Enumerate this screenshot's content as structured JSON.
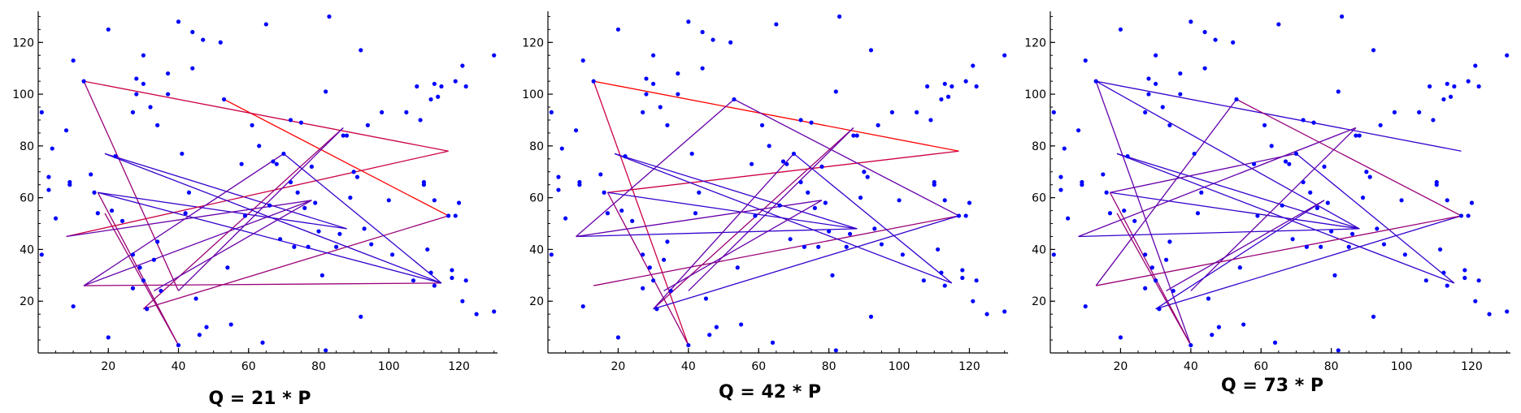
{
  "chart_data": [
    {
      "type": "scatter",
      "title": "Q = 21 * P",
      "xlim": [
        0,
        131
      ],
      "ylim": [
        0,
        132
      ],
      "xticks": [
        20,
        40,
        60,
        80,
        100,
        120
      ],
      "yticks": [
        20,
        40,
        60,
        80,
        100,
        120
      ],
      "grid": false,
      "point_color": "#0000ff",
      "segment_colors": [
        "#ff0000",
        "#cc0044",
        "#990077",
        "#6600aa",
        "#3300cc"
      ]
    },
    {
      "type": "scatter",
      "title": "Q = 42 * P",
      "xlim": [
        0,
        131
      ],
      "ylim": [
        0,
        132
      ],
      "xticks": [
        20,
        40,
        60,
        80,
        100,
        120
      ],
      "yticks": [
        20,
        40,
        60,
        80,
        100,
        120
      ],
      "grid": false,
      "point_color": "#0000ff",
      "segment_colors": [
        "#ff0000",
        "#cc0044",
        "#990077",
        "#6600aa",
        "#3300cc"
      ]
    },
    {
      "type": "scatter",
      "title": "Q = 73 * P",
      "xlim": [
        0,
        131
      ],
      "ylim": [
        0,
        132
      ],
      "xticks": [
        20,
        40,
        60,
        80,
        100,
        120
      ],
      "yticks": [
        20,
        40,
        60,
        80,
        100,
        120
      ],
      "grid": false,
      "point_color": "#0000ff",
      "segment_colors": [
        "#ff0000",
        "#cc0044",
        "#990077",
        "#6600aa",
        "#3300cc"
      ]
    }
  ],
  "points": [
    [
      1,
      93
    ],
    [
      1,
      38
    ],
    [
      3,
      68
    ],
    [
      3,
      63
    ],
    [
      4,
      79
    ],
    [
      5,
      52
    ],
    [
      8,
      86
    ],
    [
      9,
      66
    ],
    [
      9,
      65
    ],
    [
      10,
      113
    ],
    [
      10,
      18
    ],
    [
      13,
      105
    ],
    [
      15,
      69
    ],
    [
      16,
      62
    ],
    [
      17,
      54
    ],
    [
      20,
      125
    ],
    [
      20,
      6
    ],
    [
      21,
      55
    ],
    [
      22,
      76
    ],
    [
      24,
      51
    ],
    [
      27,
      93
    ],
    [
      27,
      38
    ],
    [
      27,
      25
    ],
    [
      28,
      106
    ],
    [
      28,
      100
    ],
    [
      29,
      33
    ],
    [
      30,
      115
    ],
    [
      30,
      104
    ],
    [
      30,
      28
    ],
    [
      31,
      17
    ],
    [
      32,
      95
    ],
    [
      33,
      36
    ],
    [
      34,
      88
    ],
    [
      34,
      43
    ],
    [
      35,
      24
    ],
    [
      37,
      100
    ],
    [
      37,
      108
    ],
    [
      40,
      128
    ],
    [
      40,
      3
    ],
    [
      41,
      77
    ],
    [
      42,
      54
    ],
    [
      43,
      62
    ],
    [
      44,
      110
    ],
    [
      44,
      124
    ],
    [
      45,
      21
    ],
    [
      46,
      7
    ],
    [
      47,
      121
    ],
    [
      48,
      10
    ],
    [
      52,
      120
    ],
    [
      53,
      98
    ],
    [
      54,
      33
    ],
    [
      55,
      11
    ],
    [
      58,
      73
    ],
    [
      59,
      53
    ],
    [
      61,
      88
    ],
    [
      63,
      80
    ],
    [
      64,
      4
    ],
    [
      65,
      127
    ],
    [
      66,
      57
    ],
    [
      67,
      74
    ],
    [
      68,
      73
    ],
    [
      69,
      44
    ],
    [
      70,
      77
    ],
    [
      72,
      90
    ],
    [
      72,
      66
    ],
    [
      73,
      41
    ],
    [
      74,
      62
    ],
    [
      75,
      89
    ],
    [
      76,
      56
    ],
    [
      77,
      41
    ],
    [
      78,
      72
    ],
    [
      79,
      58
    ],
    [
      80,
      47
    ],
    [
      81,
      30
    ],
    [
      82,
      1
    ],
    [
      82,
      101
    ],
    [
      83,
      130
    ],
    [
      85,
      41
    ],
    [
      86,
      46
    ],
    [
      87,
      84
    ],
    [
      88,
      84
    ],
    [
      89,
      60
    ],
    [
      90,
      70
    ],
    [
      91,
      68
    ],
    [
      92,
      117
    ],
    [
      92,
      14
    ],
    [
      93,
      48
    ],
    [
      94,
      88
    ],
    [
      95,
      42
    ],
    [
      98,
      93
    ],
    [
      100,
      59
    ],
    [
      101,
      38
    ],
    [
      105,
      93
    ],
    [
      107,
      28
    ],
    [
      108,
      103
    ],
    [
      109,
      90
    ],
    [
      110,
      66
    ],
    [
      110,
      65
    ],
    [
      111,
      40
    ],
    [
      112,
      31
    ],
    [
      112,
      98
    ],
    [
      113,
      59
    ],
    [
      113,
      26
    ],
    [
      113,
      104
    ],
    [
      114,
      99
    ],
    [
      115,
      103
    ],
    [
      117,
      53
    ],
    [
      118,
      29
    ],
    [
      118,
      32
    ],
    [
      119,
      105
    ],
    [
      119,
      53
    ],
    [
      120,
      58
    ],
    [
      121,
      111
    ],
    [
      121,
      20
    ],
    [
      122,
      28
    ],
    [
      122,
      103
    ],
    [
      125,
      15
    ],
    [
      130,
      115
    ],
    [
      130,
      16
    ]
  ],
  "segment_sets": [
    [
      [
        53,
        98,
        117,
        53,
        0
      ],
      [
        13,
        105,
        117,
        78,
        1
      ],
      [
        13,
        105,
        40,
        24,
        2
      ],
      [
        17,
        62,
        40,
        3,
        2
      ],
      [
        19,
        54,
        40,
        3,
        2
      ],
      [
        17,
        62,
        88,
        48,
        4
      ],
      [
        19,
        77,
        88,
        48,
        4
      ],
      [
        8,
        45,
        117,
        78,
        1
      ],
      [
        8,
        45,
        78,
        59,
        3
      ],
      [
        13,
        26,
        115,
        27,
        2
      ],
      [
        13,
        26,
        78,
        59,
        3
      ],
      [
        30,
        17,
        87,
        87,
        2
      ],
      [
        30,
        17,
        117,
        53,
        2
      ],
      [
        40,
        24,
        87,
        87,
        3
      ],
      [
        17,
        62,
        115,
        27,
        4
      ],
      [
        19,
        77,
        115,
        27,
        4
      ],
      [
        33,
        24,
        78,
        59,
        3
      ],
      [
        70,
        77,
        115,
        27,
        4
      ],
      [
        70,
        77,
        13,
        26,
        3
      ]
    ],
    [
      [
        13,
        105,
        117,
        78,
        0
      ],
      [
        13,
        105,
        40,
        3,
        1
      ],
      [
        17,
        62,
        117,
        78,
        1
      ],
      [
        17,
        62,
        40,
        3,
        2
      ],
      [
        13,
        26,
        117,
        53,
        2
      ],
      [
        8,
        45,
        53,
        98,
        3
      ],
      [
        53,
        98,
        117,
        53,
        3
      ],
      [
        30,
        17,
        87,
        87,
        2
      ],
      [
        40,
        24,
        87,
        87,
        3
      ],
      [
        8,
        45,
        88,
        48,
        4
      ],
      [
        19,
        77,
        88,
        48,
        4
      ],
      [
        19,
        77,
        115,
        27,
        4
      ],
      [
        17,
        62,
        88,
        48,
        4
      ],
      [
        30,
        17,
        117,
        53,
        4
      ],
      [
        70,
        77,
        115,
        27,
        4
      ],
      [
        33,
        24,
        78,
        59,
        3
      ],
      [
        70,
        77,
        30,
        17,
        3
      ],
      [
        8,
        45,
        78,
        59,
        3
      ]
    ],
    [
      [
        13,
        105,
        117,
        78,
        4
      ],
      [
        13,
        105,
        88,
        48,
        4
      ],
      [
        13,
        105,
        40,
        3,
        3
      ],
      [
        17,
        62,
        40,
        3,
        2
      ],
      [
        19,
        54,
        40,
        3,
        2
      ],
      [
        53,
        98,
        117,
        53,
        2
      ],
      [
        53,
        98,
        13,
        26,
        3
      ],
      [
        8,
        45,
        87,
        87,
        3
      ],
      [
        8,
        45,
        88,
        48,
        4
      ],
      [
        19,
        77,
        88,
        48,
        4
      ],
      [
        19,
        77,
        115,
        27,
        4
      ],
      [
        17,
        62,
        88,
        48,
        4
      ],
      [
        17,
        62,
        70,
        77,
        3
      ],
      [
        70,
        77,
        115,
        27,
        4
      ],
      [
        40,
        24,
        87,
        87,
        3
      ],
      [
        30,
        17,
        78,
        59,
        4
      ],
      [
        30,
        17,
        117,
        53,
        4
      ],
      [
        13,
        26,
        117,
        53,
        2
      ],
      [
        33,
        24,
        78,
        59,
        3
      ]
    ]
  ]
}
